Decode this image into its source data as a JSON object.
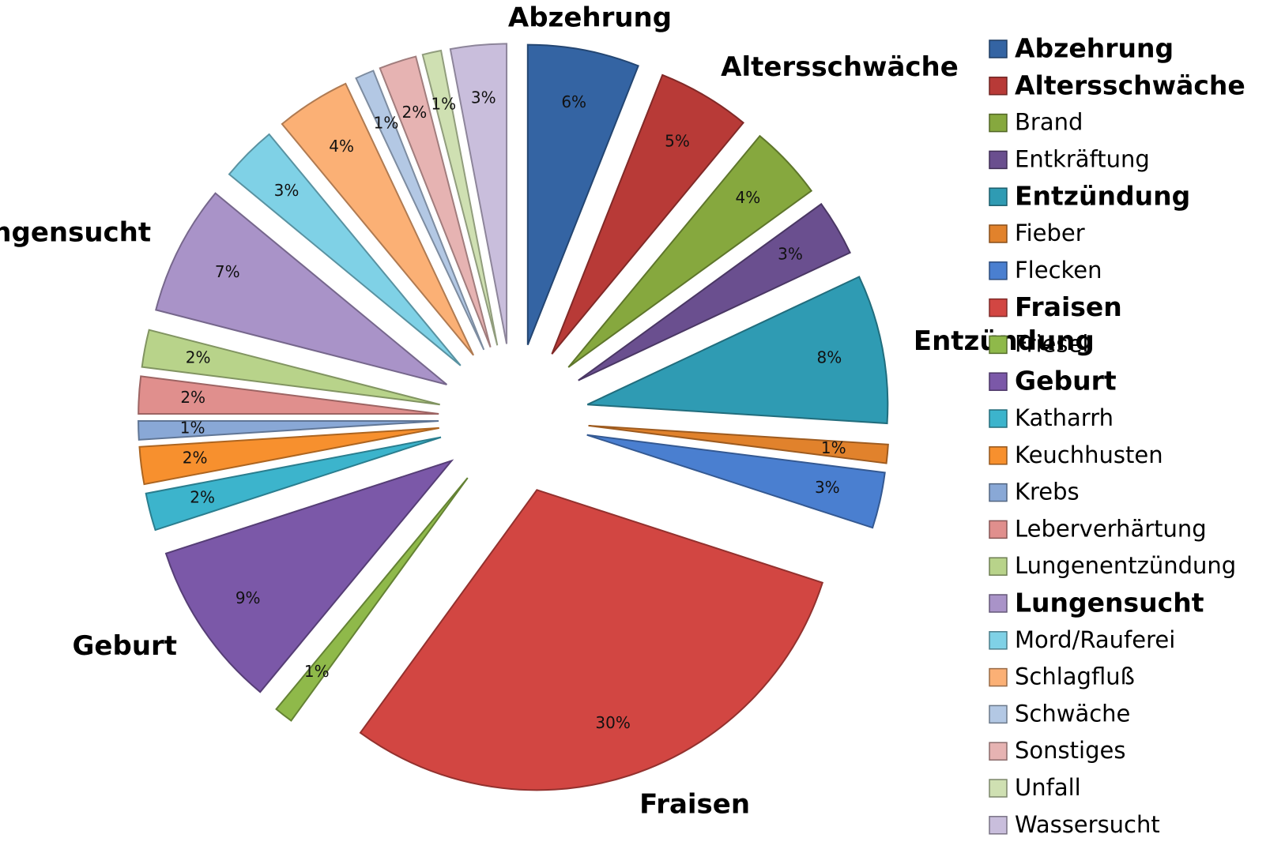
{
  "chart_data": {
    "type": "pie",
    "categories": [
      "Abzehrung",
      "Altersschwäche",
      "Brand",
      "Entkräftung",
      "Entzündung",
      "Fieber",
      "Flecken",
      "Fraisen",
      "Friesel",
      "Geburt",
      "Katharrh",
      "Keuchhusten",
      "Krebs",
      "Leberverhärtung",
      "Lungenentzündung",
      "Lungensucht",
      "Mord/Rauferei",
      "Schlagfluß",
      "Schwäche",
      "Sonstiges",
      "Unfall",
      "Wassersucht"
    ],
    "values": [
      6,
      5,
      4,
      3,
      8,
      1,
      3,
      30,
      1,
      9,
      2,
      2,
      1,
      2,
      2,
      7,
      3,
      4,
      1,
      2,
      1,
      3
    ],
    "value_labels": [
      "6%",
      "5%",
      "4%",
      "3%",
      "8%",
      "1%",
      "3%",
      "30%",
      "1%",
      "9%",
      "2%",
      "2%",
      "1%",
      "2%",
      "2%",
      "7%",
      "3%",
      "4%",
      "1%",
      "2%",
      "1%",
      "3%"
    ],
    "colors": [
      "#3464a3",
      "#b83a37",
      "#86a83e",
      "#6a4f8f",
      "#2f9bb3",
      "#e1822c",
      "#4a7fd0",
      "#d24642",
      "#8fb94a",
      "#7b58a8",
      "#3cb4cc",
      "#f7902e",
      "#89a8d6",
      "#e08f8d",
      "#b8d38a",
      "#a993c8",
      "#7fd1e6",
      "#fbb075",
      "#b3c8e4",
      "#e6b3b2",
      "#cfe0b2",
      "#c9bedc"
    ],
    "highlight": [
      true,
      true,
      false,
      false,
      true,
      false,
      false,
      true,
      false,
      true,
      false,
      false,
      false,
      false,
      false,
      true,
      false,
      false,
      false,
      false,
      false,
      false
    ],
    "legend": "right"
  }
}
